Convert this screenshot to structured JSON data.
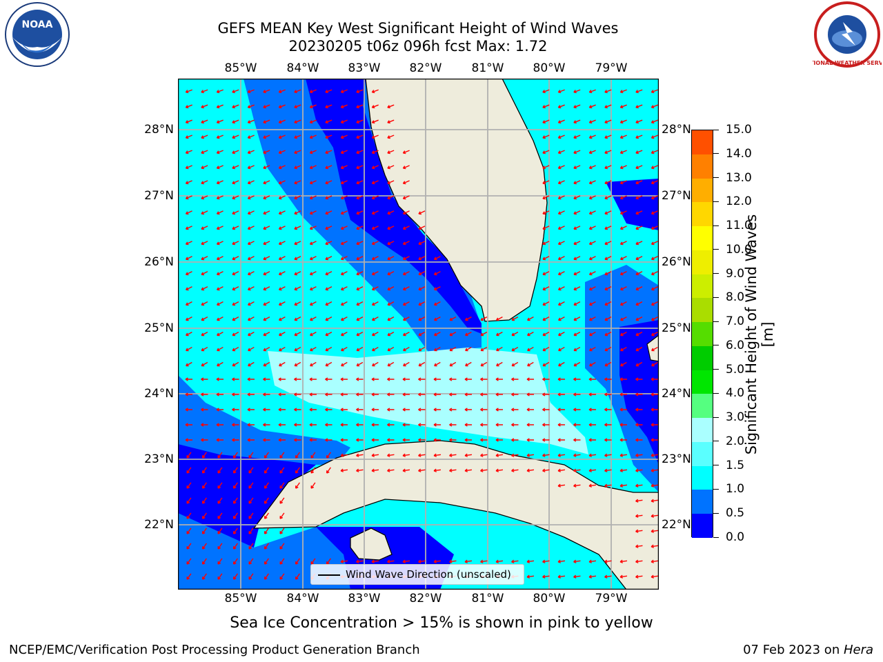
{
  "header": {
    "title_line1": "GEFS MEAN Key West Significant Height of Wind Waves",
    "title_line2": "20230205 t06z 096h fcst   Max: 1.72"
  },
  "logos": {
    "left_text": "NOAA",
    "right_text": "NATIONAL WEATHER SERVICE"
  },
  "map": {
    "lon_labels": [
      "85°W",
      "84°W",
      "83°W",
      "82°W",
      "81°W",
      "80°W",
      "79°W"
    ],
    "lat_labels": [
      "28°N",
      "27°N",
      "26°N",
      "25°N",
      "24°N",
      "23°N",
      "22°N"
    ],
    "legend_label": "Wind Wave Direction (unscaled)",
    "colors": {
      "land": "#eeecdc",
      "gridline": "#b0b0b0",
      "arrow": "#ff0000",
      "level_0_0.5": "#0000ff",
      "level_0.5_1": "#0073ff",
      "level_1_1.5": "#00ffff",
      "level_1.5_2": "#5affff",
      "level_2_3": "#aaffff"
    }
  },
  "colorbar": {
    "label": "Significant Height of Wind Waves [m]",
    "tick_labels": [
      "15.0",
      "14.0",
      "13.0",
      "12.0",
      "11.0",
      "10.0",
      "9.0",
      "8.0",
      "7.0",
      "6.0",
      "5.0",
      "4.0",
      "3.0",
      "2.0",
      "1.5",
      "1.0",
      "0.5",
      "0.0"
    ],
    "colors": [
      "#0000ff",
      "#0073ff",
      "#00ffff",
      "#5affff",
      "#aaffff",
      "#55ff80",
      "#00e600",
      "#00cc00",
      "#55dd00",
      "#aadd00",
      "#ccee00",
      "#eeee00",
      "#ffff00",
      "#ffd700",
      "#ffae00",
      "#ff8000",
      "#ff5000",
      "#ff2000",
      "#ff0000"
    ]
  },
  "chart_data": {
    "type": "heatmap",
    "title": "GEFS MEAN Key West Significant Height of Wind Waves",
    "subtitle": "20230205 t06z 096h fcst   Max: 1.72",
    "x_range": [
      -86.0,
      -78.3
    ],
    "y_range": [
      21.0,
      28.8
    ],
    "colorbar_label": "Significant Height of Wind Waves [m]",
    "levels": [
      0.0,
      0.5,
      1.0,
      1.5,
      2.0,
      3.0,
      4.0,
      5.0,
      6.0,
      7.0,
      8.0,
      9.0,
      10.0,
      11.0,
      12.0,
      13.0,
      14.0,
      15.0
    ],
    "max_value": 1.72,
    "legend": "Wind Wave Direction (unscaled)",
    "grid": true
  },
  "footer": {
    "caption": "Sea Ice Concentration > 15% is shown in pink to yellow",
    "left": "NCEP/EMC/Verification Post Processing Product Generation Branch",
    "right_prefix": "07 Feb 2023 on ",
    "right_host": "Hera"
  }
}
